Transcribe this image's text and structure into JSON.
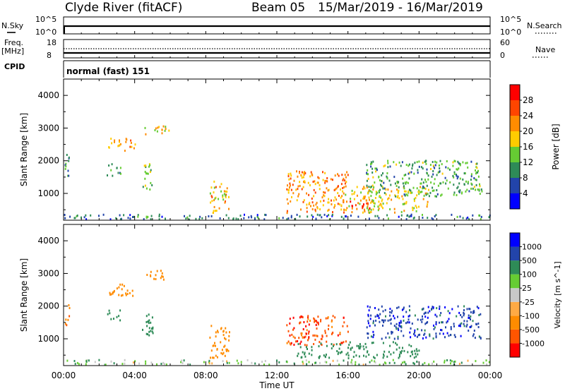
{
  "header": {
    "station": "Clyde River (fitACF)",
    "beam": "Beam 05",
    "dates": "15/Mar/2019 - 16/Mar/2019"
  },
  "strip_labels": {
    "nsky": "N.Sky",
    "nsearch": "N.Search",
    "freq": "Freq.",
    "freq_unit": "[MHz]",
    "nave": "Nave",
    "cpid": "CPID",
    "cpid_value": "normal (fast) 151",
    "nsky_ticks": [
      "10^5",
      "10^0"
    ],
    "nsearch_ticks": [
      "10^5",
      "10^0"
    ],
    "freq_ticks": [
      "18",
      "8"
    ],
    "nave_ticks": [
      "60",
      "0"
    ]
  },
  "colors": {
    "power": [
      "#0000ff",
      "#2244aa",
      "#2e8b57",
      "#66cc33",
      "#ffcc00",
      "#ff8c00",
      "#ff4500",
      "#ff0000"
    ],
    "velocity": [
      "#ff0000",
      "#ff5500",
      "#ff8c00",
      "#ffaa44",
      "#c8c8c8",
      "#66cc33",
      "#2e8b57",
      "#2244aa",
      "#0000ff"
    ]
  },
  "chart_data": [
    {
      "type": "heatmap",
      "panel": "power",
      "ylabel": "Slant Range [km]",
      "xlabel": "Time UT",
      "x_ticks": [
        "00:00",
        "04:00",
        "08:00",
        "12:00",
        "16:00",
        "20:00",
        "00:00"
      ],
      "y_ticks": [
        1000,
        2000,
        3000,
        4000
      ],
      "ylim": [
        180,
        4500
      ],
      "xlim_hours": [
        0,
        24
      ],
      "colorbar": {
        "label": "Power [dB]",
        "ticks": [
          4,
          8,
          12,
          16,
          20,
          24,
          28
        ],
        "range": [
          0,
          32
        ]
      },
      "regions": [
        {
          "t": [
            0.0,
            0.3
          ],
          "r": [
            1400,
            2200
          ],
          "v": 10
        },
        {
          "t": [
            2.5,
            4.0
          ],
          "r": [
            2300,
            2700
          ],
          "v": 22
        },
        {
          "t": [
            2.4,
            3.2
          ],
          "r": [
            1500,
            1900
          ],
          "v": 12
        },
        {
          "t": [
            4.3,
            5.0
          ],
          "r": [
            1100,
            1900
          ],
          "v": 14
        },
        {
          "t": [
            4.5,
            6.0
          ],
          "r": [
            2800,
            3100
          ],
          "v": 18
        },
        {
          "t": [
            8.2,
            9.3
          ],
          "r": [
            400,
            1400
          ],
          "v": 20
        },
        {
          "t": [
            12.5,
            16.0
          ],
          "r": [
            400,
            1700
          ],
          "v": 22
        },
        {
          "t": [
            15.5,
            20.5
          ],
          "r": [
            400,
            1200
          ],
          "v": 18
        },
        {
          "t": [
            16.0,
            17.2
          ],
          "r": [
            450,
            800
          ],
          "v": 28
        },
        {
          "t": [
            17.0,
            23.5
          ],
          "r": [
            900,
            2000
          ],
          "v": 12
        },
        {
          "t": [
            0.0,
            24.0
          ],
          "r": [
            200,
            350
          ],
          "v": 8
        }
      ]
    },
    {
      "type": "heatmap",
      "panel": "velocity",
      "ylabel": "Slant Range [km]",
      "xlabel": "Time UT",
      "x_ticks": [
        "00:00",
        "04:00",
        "08:00",
        "12:00",
        "16:00",
        "20:00",
        "00:00"
      ],
      "y_ticks": [
        1000,
        2000,
        3000,
        4000
      ],
      "ylim": [
        180,
        4500
      ],
      "xlim_hours": [
        0,
        24
      ],
      "colorbar": {
        "label": "Velocity [m s^-1]",
        "ticks": [
          -1000,
          -500,
          -100,
          -25,
          25,
          100,
          500,
          1000
        ]
      },
      "regions": [
        {
          "t": [
            0.0,
            0.3
          ],
          "r": [
            1400,
            2200
          ],
          "v": -500
        },
        {
          "t": [
            2.5,
            4.0
          ],
          "r": [
            2300,
            2700
          ],
          "v": -300
        },
        {
          "t": [
            2.4,
            3.2
          ],
          "r": [
            1500,
            1900
          ],
          "v": 300
        },
        {
          "t": [
            4.3,
            5.0
          ],
          "r": [
            1100,
            1900
          ],
          "v": 300
        },
        {
          "t": [
            4.5,
            6.0
          ],
          "r": [
            2800,
            3100
          ],
          "v": -300
        },
        {
          "t": [
            8.2,
            9.3
          ],
          "r": [
            400,
            1400
          ],
          "v": -300
        },
        {
          "t": [
            12.5,
            16.0
          ],
          "r": [
            800,
            1700
          ],
          "v": -800
        },
        {
          "t": [
            13.0,
            20.0
          ],
          "r": [
            400,
            900
          ],
          "v": 300
        },
        {
          "t": [
            17.0,
            23.5
          ],
          "r": [
            1000,
            2000
          ],
          "v": 800
        },
        {
          "t": [
            0.0,
            24.0
          ],
          "r": [
            200,
            350
          ],
          "v": 50
        }
      ]
    }
  ]
}
